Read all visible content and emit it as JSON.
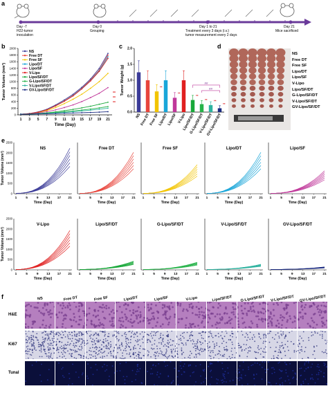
{
  "panels": {
    "a": "a",
    "b": "b",
    "c": "c",
    "d": "d",
    "e": "e",
    "f": "f"
  },
  "timeline": {
    "events": [
      {
        "day": "Day -7",
        "desc1": "H22-tumor",
        "desc2": "inoculation"
      },
      {
        "day": "Day 0",
        "desc1": "Grouping",
        "desc2": ""
      },
      {
        "day": "Day 1 to 21",
        "desc1": "Treatment every 3 days (i.v.)",
        "desc2": "tumor measurement every 2 days"
      },
      {
        "day": "Day 21",
        "desc1": "Mice sacrificed",
        "desc2": ""
      }
    ]
  },
  "groups": [
    "NS",
    "Free DT",
    "Free SF",
    "Lipo/DT",
    "Lipo/SF",
    "V-Lipo",
    "Lipo/SF/DT",
    "G-Lipo/SF/DT",
    "V-Lipo/SF/DT",
    "GV-Lipo/SF/DT"
  ],
  "colors": [
    "#3b3b98",
    "#e8453c",
    "#f2c400",
    "#1aa6d9",
    "#c0389a",
    "#e02020",
    "#19a83a",
    "#27b34a",
    "#2fb3a0",
    "#1a2a80"
  ],
  "panel_b": {
    "ylabel": "Tumor Volume (mm³)",
    "xlabel": "Time (Day)",
    "yticks": [
      "0",
      "200",
      "400",
      "600",
      "800",
      "1000",
      "1200",
      "1400",
      "1600",
      "1800",
      "2000"
    ],
    "xticks": [
      "1",
      "3",
      "5",
      "7",
      "9",
      "11",
      "13",
      "15",
      "17",
      "19",
      "21"
    ],
    "legend": [
      "NS",
      "Free DT",
      "Free SF",
      "Lipo/DT",
      "Lipo/SF",
      "V-Lipo",
      "Lipo/SF/DT",
      "G-Lipo/SF/DT",
      "V-Lipo/SF/DT",
      "GV-Lipo/SF/DT"
    ],
    "sig": [
      "**",
      "**",
      "**"
    ]
  },
  "panel_c": {
    "ylabel": "Tumor Weight (g)",
    "yticks": [
      "0.0",
      "0.5",
      "1.0",
      "1.5",
      "2.0"
    ],
    "categories": [
      "NS",
      "Free DT",
      "Free SF",
      "Lipo/DT",
      "Lipo/SF",
      "V-Lipo",
      "Lipo/SF/DT",
      "G-Lipo/SF/DT",
      "V-Lipo/SF/DT",
      "GV-Lipo/SF/DT"
    ],
    "values": [
      1.25,
      1.0,
      0.65,
      1.0,
      0.45,
      1.0,
      0.38,
      0.25,
      0.22,
      0.12
    ],
    "sig_star": [
      "**",
      "**",
      "**",
      "**",
      "**",
      "**",
      "**"
    ],
    "sig_hash": [
      "##",
      "##"
    ]
  },
  "panel_d": {
    "labels": [
      "NS",
      "Free DT",
      "Free SF",
      "Lipo/DT",
      "Lipo/SF",
      "V-Lipo",
      "Lipo/SF/DT",
      "G-Lipo/SF/DT",
      "V-Lipo/SF/DT",
      "GV-Lipo/SF/DT"
    ]
  },
  "panel_e": {
    "ylabel": "Tumor Volume (mm³)",
    "xlabel": "Time (Day)",
    "yticks": [
      "0",
      "500",
      "1000",
      "1500",
      "2000",
      "2500"
    ],
    "xticks": [
      "1",
      "5",
      "9",
      "13",
      "17",
      "21"
    ],
    "titles": [
      "NS",
      "Free DT",
      "Free SF",
      "Lipo/DT",
      "Lipo/SF",
      "V-Lipo",
      "Lipo/SF/DT",
      "G-Lipo/SF/DT",
      "V-Lipo/SF/DT",
      "GV-Lipo/SF/DT"
    ]
  },
  "panel_f": {
    "cols": [
      "NS",
      "Free DT",
      "Free SF",
      "Lipo/DT",
      "Lipo/SF",
      "V-Lipo",
      "Lipo/SF/DT",
      "G-Lipo/SF/DT",
      "V-Lipo/SF/DT",
      "GV-Lipo/SF/DT"
    ],
    "rows": [
      "H&E",
      "Ki67",
      "Tunal"
    ]
  },
  "chart_data": [
    {
      "type": "line",
      "title": "",
      "xlabel": "Time (Day)",
      "ylabel": "Tumor Volume (mm³)",
      "x": [
        1,
        3,
        5,
        7,
        9,
        11,
        13,
        15,
        17,
        19,
        21
      ],
      "ylim": [
        0,
        2000
      ],
      "series": [
        {
          "name": "NS",
          "values": [
            20,
            40,
            90,
            170,
            300,
            450,
            620,
            830,
            1080,
            1400,
            1850
          ]
        },
        {
          "name": "Free DT",
          "values": [
            20,
            38,
            85,
            160,
            280,
            420,
            590,
            800,
            1050,
            1350,
            1800
          ]
        },
        {
          "name": "Free SF",
          "values": [
            20,
            35,
            70,
            130,
            220,
            340,
            470,
            620,
            800,
            1000,
            1250
          ]
        },
        {
          "name": "Lipo/DT",
          "values": [
            20,
            38,
            82,
            155,
            275,
            415,
            580,
            790,
            1030,
            1330,
            1750
          ]
        },
        {
          "name": "Lipo/SF",
          "values": [
            20,
            30,
            55,
            95,
            150,
            220,
            300,
            400,
            520,
            650,
            820
          ]
        },
        {
          "name": "V-Lipo",
          "values": [
            20,
            37,
            80,
            150,
            270,
            410,
            570,
            780,
            1020,
            1310,
            1700
          ]
        },
        {
          "name": "Lipo/SF/DT",
          "values": [
            20,
            26,
            40,
            60,
            90,
            125,
            165,
            210,
            260,
            320,
            380
          ]
        },
        {
          "name": "G-Lipo/SF/DT",
          "values": [
            20,
            24,
            34,
            48,
            68,
            90,
            115,
            145,
            175,
            210,
            250
          ]
        },
        {
          "name": "V-Lipo/SF/DT",
          "values": [
            20,
            23,
            31,
            43,
            58,
            75,
            95,
            118,
            142,
            170,
            200
          ]
        },
        {
          "name": "GV-Lipo/SF/DT",
          "values": [
            20,
            22,
            27,
            33,
            40,
            48,
            56,
            64,
            72,
            82,
            95
          ]
        }
      ]
    },
    {
      "type": "bar",
      "title": "",
      "ylabel": "Tumor Weight (g)",
      "categories": [
        "NS",
        "Free DT",
        "Free SF",
        "Lipo/DT",
        "Lipo/SF",
        "V-Lipo",
        "Lipo/SF/DT",
        "G-Lipo/SF/DT",
        "V-Lipo/SF/DT",
        "GV-Lipo/SF/DT"
      ],
      "values": [
        1.25,
        1.0,
        0.65,
        1.0,
        0.45,
        1.0,
        0.38,
        0.25,
        0.22,
        0.12
      ],
      "ylim": [
        0,
        2.0
      ]
    }
  ]
}
